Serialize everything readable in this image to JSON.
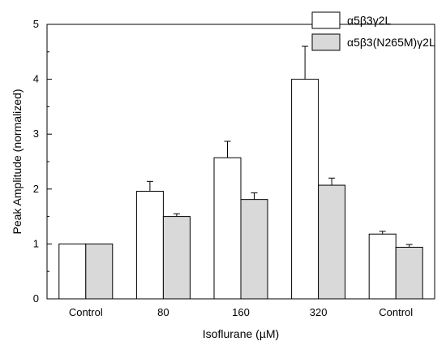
{
  "chart_data": {
    "type": "bar",
    "title": "",
    "xlabel": "Isoflurane (µM)",
    "ylabel": "Peak Amplitude (normalized)",
    "categories": [
      "Control",
      "80",
      "160",
      "320",
      "Control"
    ],
    "ylim": [
      0,
      5
    ],
    "yticks": [
      "0",
      "1",
      "2",
      "3",
      "4",
      "5"
    ],
    "grid": false,
    "legend_position": "top-right",
    "series": [
      {
        "name": "α5β3γ2L",
        "color": "#ffffff",
        "values": [
          1.0,
          1.96,
          2.57,
          4.0,
          1.18
        ],
        "errors": [
          0,
          0.18,
          0.3,
          0.6,
          0.05
        ]
      },
      {
        "name": "α5β3(N265M)γ2L",
        "color": "#d9d9d9",
        "values": [
          1.0,
          1.5,
          1.81,
          2.07,
          0.94
        ],
        "errors": [
          0,
          0.05,
          0.12,
          0.13,
          0.05
        ]
      }
    ]
  }
}
